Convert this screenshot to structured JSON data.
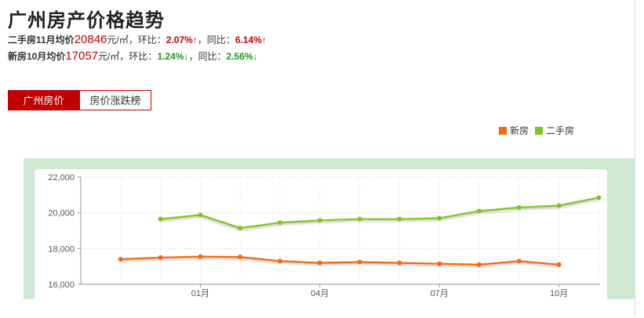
{
  "header": {
    "title": "广州房产价格趋势",
    "second_hand": {
      "label": "二手房11月均价",
      "price": "20846",
      "unit": "元/㎡",
      "mom_label": "，环比：",
      "mom_value": "2.07%↑",
      "yoy_label": "，同比：",
      "yoy_value": "6.14%↑"
    },
    "new_house": {
      "label": "新房10月均价",
      "price": "17057",
      "unit": "元/㎡",
      "mom_label": "，环比：",
      "mom_value": "1.24%↓",
      "yoy_label": "，同比：",
      "yoy_value": "2.56%↓"
    }
  },
  "tabs": [
    {
      "label": "广州房价",
      "active": true
    },
    {
      "label": "房价涨跌榜",
      "active": false
    }
  ],
  "legend": [
    {
      "label": "新房",
      "color": "#f26a10"
    },
    {
      "label": "二手房",
      "color": "#7ec421"
    }
  ],
  "chart_data": {
    "type": "line",
    "y_ticks": [
      "22,000",
      "20,000",
      "18,000",
      "16,000"
    ],
    "x_tick_labels": [
      "01月",
      "04月",
      "07月",
      "10月"
    ],
    "ylim": [
      16000,
      22000
    ],
    "series": [
      {
        "name": "新房",
        "color": "#f26a10",
        "points": [
          [
            1,
            17400
          ],
          [
            2,
            17500
          ],
          [
            3,
            17550
          ],
          [
            4,
            17530
          ],
          [
            5,
            17300
          ],
          [
            6,
            17200
          ],
          [
            7,
            17250
          ],
          [
            8,
            17200
          ],
          [
            9,
            17150
          ],
          [
            10,
            17100
          ],
          [
            11,
            17300
          ],
          [
            12,
            17100
          ]
        ]
      },
      {
        "name": "二手房",
        "color": "#7ec421",
        "points": [
          [
            2,
            19650
          ],
          [
            3,
            19880
          ],
          [
            4,
            19150
          ],
          [
            5,
            19450
          ],
          [
            6,
            19580
          ],
          [
            7,
            19650
          ],
          [
            8,
            19650
          ],
          [
            9,
            19700
          ],
          [
            10,
            20100
          ],
          [
            11,
            20300
          ],
          [
            12,
            20400
          ],
          [
            13,
            20846
          ]
        ]
      }
    ],
    "grid": true
  }
}
